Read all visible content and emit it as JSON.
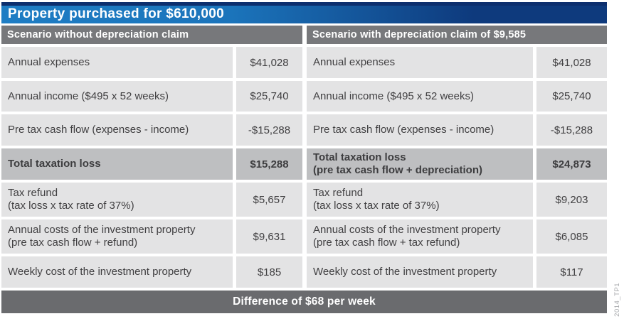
{
  "title": "Property purchased for $610,000",
  "watermark": "2014_TP1",
  "footer": {
    "label": "Difference of $68 per week"
  },
  "colors": {
    "title_blue_left": "#1b74bb",
    "title_blue_right": "#0e3a7d",
    "header_gray": "#77787b",
    "cell_gray": "#e3e3e4",
    "total_gray": "#bebfc1",
    "footer_gray": "#6a6b6e",
    "text": "#414042"
  },
  "scenarios": [
    {
      "header": "Scenario without depreciation claim",
      "rows": [
        {
          "label": "Annual expenses",
          "label2": "",
          "value": "$41,028",
          "total": false
        },
        {
          "label": "Annual income ($495 x 52 weeks)",
          "label2": "",
          "value": "$25,740",
          "total": false
        },
        {
          "label": "Pre tax cash flow (expenses - income)",
          "label2": "",
          "value": "-$15,288",
          "total": false
        },
        {
          "label": "Total taxation loss",
          "label2": "",
          "value": "$15,288",
          "total": true
        },
        {
          "label": "Tax refund",
          "label2": "(tax loss x tax rate of 37%)",
          "value": "$5,657",
          "total": false
        },
        {
          "label": "Annual costs of the investment property",
          "label2": "(pre tax cash flow + refund)",
          "value": "$9,631",
          "total": false
        },
        {
          "label": "Weekly cost of the investment property",
          "label2": "",
          "value": "$185",
          "total": false
        }
      ]
    },
    {
      "header": "Scenario with depreciation claim of $9,585",
      "rows": [
        {
          "label": "Annual expenses",
          "label2": "",
          "value": "$41,028",
          "total": false
        },
        {
          "label": "Annual income ($495 x 52 weeks)",
          "label2": "",
          "value": "$25,740",
          "total": false
        },
        {
          "label": "Pre tax cash flow (expenses - income)",
          "label2": "",
          "value": "-$15,288",
          "total": false
        },
        {
          "label": "Total taxation loss",
          "label2": "(pre tax cash flow + depreciation)",
          "value": "$24,873",
          "total": true
        },
        {
          "label": "Tax refund",
          "label2": "(tax loss x tax rate of 37%)",
          "value": "$9,203",
          "total": false
        },
        {
          "label": "Annual costs of the investment property",
          "label2": "(pre tax cash flow + tax refund)",
          "value": "$6,085",
          "total": false
        },
        {
          "label": "Weekly cost of the investment property",
          "label2": "",
          "value": "$117",
          "total": false
        }
      ]
    }
  ]
}
